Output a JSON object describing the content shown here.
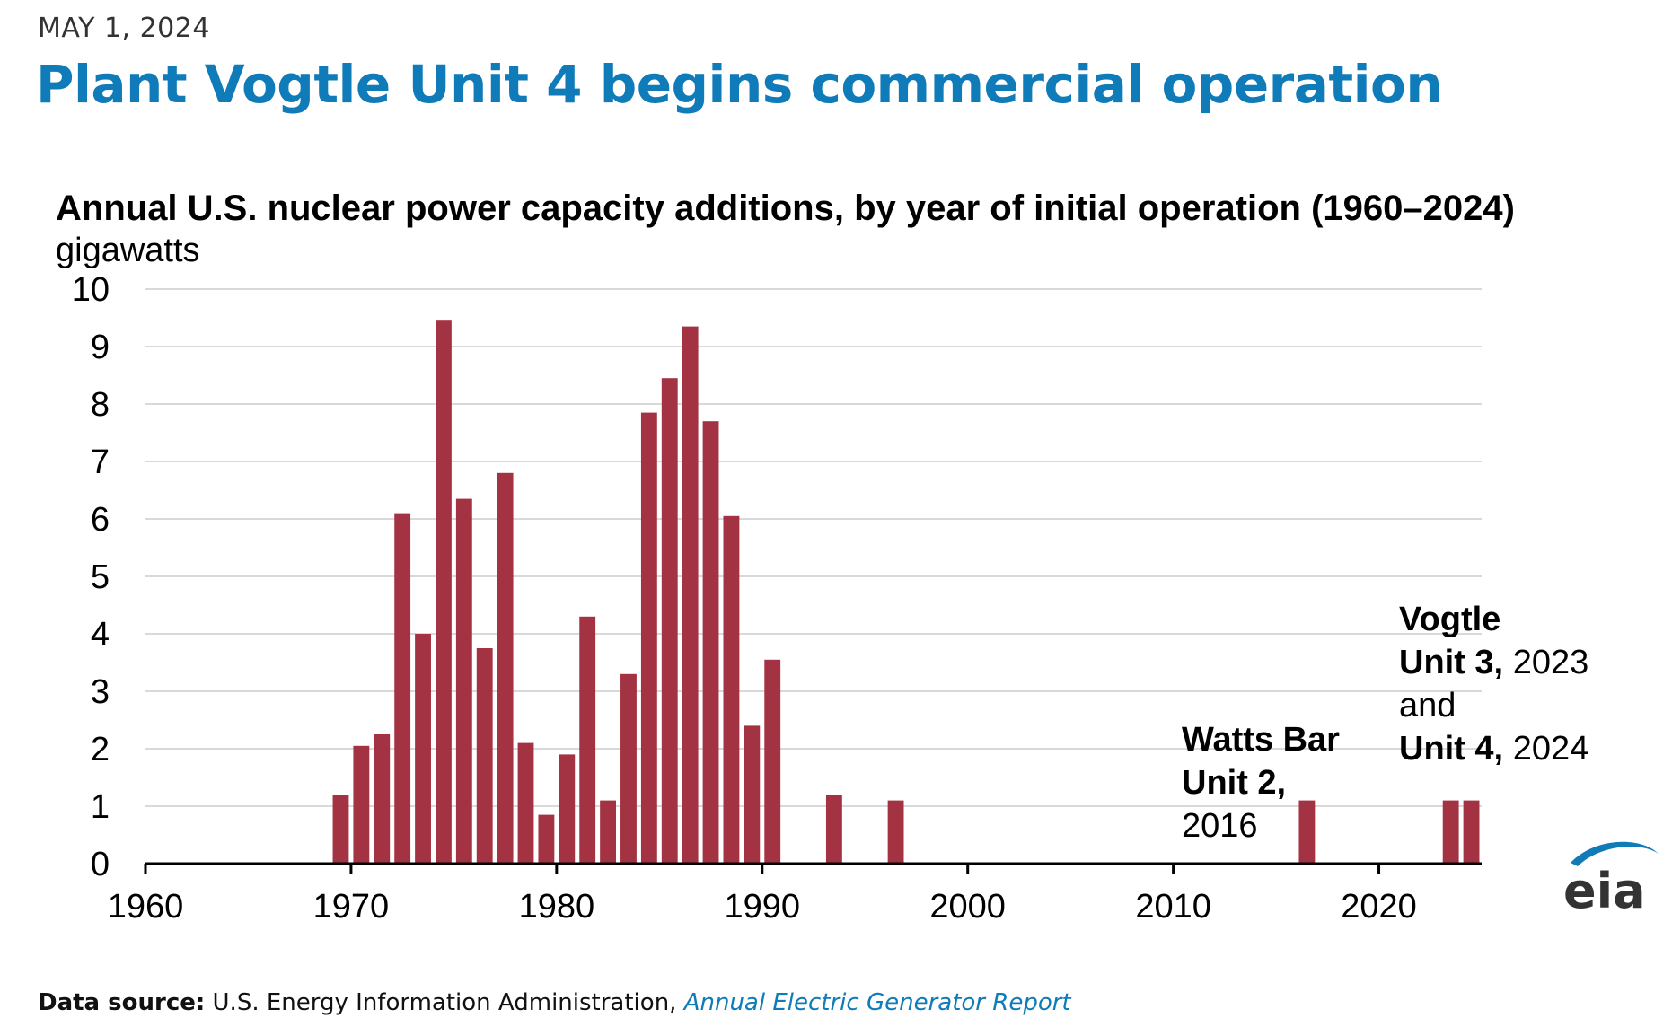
{
  "header": {
    "date": "MAY 1, 2024",
    "headline": "Plant Vogtle Unit 4 begins commercial operation"
  },
  "annotations": {
    "watts_bar": {
      "line1": "Watts Bar",
      "line2": "Unit 2,",
      "line3": "2016"
    },
    "vogtle": {
      "line1": "Vogtle",
      "unit3_bold": "Unit 3,",
      "unit3_year": "2023",
      "and_text": "and",
      "unit4_bold": "Unit 4,",
      "unit4_year": "2024"
    }
  },
  "footer": {
    "source_label": "Data source:",
    "source_org": "U.S. Energy Information Administration,",
    "source_report": "Annual Electric Generator Report"
  },
  "logo": {
    "text": "eia"
  },
  "colors": {
    "bar": "#a33343",
    "headline": "#0f7bb8",
    "grid": "#d9d9d9",
    "axis": "#000000"
  },
  "chart_data": {
    "type": "bar",
    "title": "Annual U.S. nuclear power capacity additions, by year of initial operation (1960–2024)",
    "ylabel": "gigawatts",
    "xlabel": "",
    "xlim": [
      1960,
      2025
    ],
    "ylim": [
      0,
      10
    ],
    "grid": true,
    "x_ticks": [
      1960,
      1970,
      1980,
      1990,
      2000,
      2010,
      2020
    ],
    "y_ticks": [
      0,
      1,
      2,
      3,
      4,
      5,
      6,
      7,
      8,
      9,
      10
    ],
    "categories": [
      1969,
      1970,
      1971,
      1972,
      1973,
      1974,
      1975,
      1976,
      1977,
      1978,
      1979,
      1980,
      1981,
      1982,
      1983,
      1984,
      1985,
      1986,
      1987,
      1988,
      1989,
      1990,
      1993,
      1996,
      2016,
      2023,
      2024
    ],
    "values": [
      1.2,
      2.05,
      2.25,
      6.1,
      4.0,
      9.45,
      6.35,
      3.75,
      6.8,
      2.1,
      0.85,
      1.9,
      4.3,
      1.1,
      3.3,
      7.85,
      8.45,
      9.35,
      7.7,
      6.05,
      2.4,
      3.55,
      1.2,
      1.1,
      1.1,
      1.1,
      1.1
    ]
  }
}
